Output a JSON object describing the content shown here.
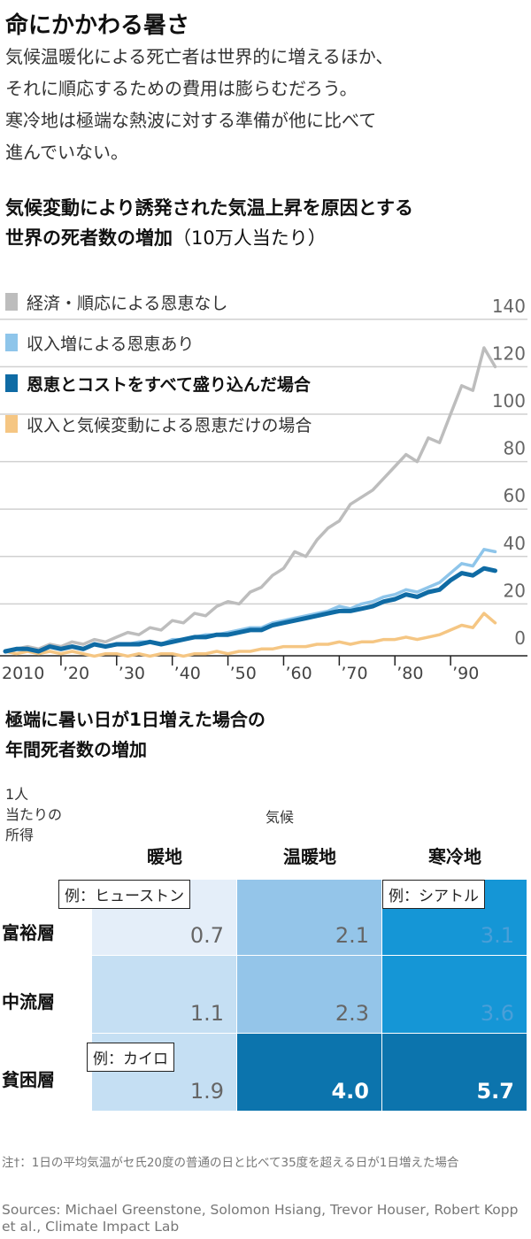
{
  "title": "命にかかわる暑さ",
  "subtitle": {
    "line1": "気候温暖化による死亡者は世界的に増えるほか、",
    "line2": "それに順応するための費用は膨らむだろう。",
    "line3": "寒冷地は極端な熱波に対する準備が他に比べて",
    "line4": "進んでいない。"
  },
  "chart_data": [
    {
      "type": "line",
      "title": "気候変動により誘発された気温上昇を原因とする世界の死者数の増加",
      "title_line1": "気候変動により誘発された気温上昇を原因とする",
      "title_line2": "世界の死者数の増加",
      "title_sub": "（10万人当たり）",
      "x_tick_labels": [
        "2010",
        "’20",
        "’30",
        "’40",
        "’50",
        "’60",
        "’70",
        "’80",
        "’90"
      ],
      "x_ticks": [
        2010,
        2020,
        2030,
        2040,
        2050,
        2060,
        2070,
        2080,
        2090
      ],
      "y_tick_labels": [
        "0",
        "20",
        "40",
        "60",
        "80",
        "100",
        "120",
        "140"
      ],
      "y_ticks": [
        0,
        20,
        40,
        60,
        80,
        100,
        120,
        140
      ],
      "xlim": [
        2010,
        2100
      ],
      "ylim": [
        -5,
        145
      ],
      "grid": true,
      "legend_position": "top-left",
      "x": [
        2010,
        2012,
        2014,
        2016,
        2018,
        2020,
        2022,
        2024,
        2026,
        2028,
        2030,
        2032,
        2034,
        2036,
        2038,
        2040,
        2042,
        2044,
        2046,
        2048,
        2050,
        2052,
        2054,
        2056,
        2058,
        2060,
        2062,
        2064,
        2066,
        2068,
        2070,
        2072,
        2074,
        2076,
        2078,
        2080,
        2082,
        2084,
        2086,
        2088,
        2090,
        2092,
        2094,
        2096,
        2098
      ],
      "series": [
        {
          "name": "経済・順応による恩恵なし",
          "color": "#bdbdbd",
          "values": [
            0,
            1,
            2,
            1,
            3,
            2,
            4,
            3,
            5,
            4,
            6,
            8,
            7,
            10,
            9,
            13,
            12,
            16,
            15,
            19,
            21,
            20,
            25,
            27,
            32,
            35,
            42,
            40,
            47,
            52,
            55,
            62,
            65,
            68,
            73,
            78,
            83,
            80,
            90,
            88,
            100,
            112,
            110,
            128,
            120
          ]
        },
        {
          "name": "収入増による恩恵あり",
          "color": "#8ec5ea",
          "values": [
            0,
            1,
            1,
            0,
            2,
            1,
            2,
            1,
            3,
            2,
            3,
            3,
            4,
            4,
            3,
            5,
            5,
            6,
            7,
            7,
            8,
            9,
            10,
            10,
            12,
            13,
            14,
            15,
            16,
            17,
            19,
            18,
            20,
            21,
            23,
            24,
            26,
            25,
            27,
            29,
            33,
            37,
            36,
            43,
            42
          ]
        },
        {
          "name": "恩恵とコストをすべて盛り込んだ場合",
          "color": "#0f6ba4",
          "bold": true,
          "values": [
            0,
            1,
            1,
            0,
            2,
            1,
            2,
            1,
            3,
            2,
            3,
            3,
            3,
            4,
            3,
            4,
            5,
            6,
            6,
            7,
            7,
            8,
            9,
            9,
            11,
            12,
            13,
            14,
            15,
            16,
            17,
            17,
            18,
            19,
            21,
            22,
            24,
            23,
            25,
            26,
            30,
            33,
            32,
            35,
            34
          ]
        },
        {
          "name": "収入と気候変動による恩恵だけの場合",
          "color": "#f5c683",
          "values": [
            0,
            -1,
            0,
            -1,
            0,
            -1,
            0,
            -1,
            -2,
            -1,
            -1,
            -2,
            -1,
            -2,
            -1,
            -1,
            -2,
            -1,
            -1,
            0,
            -1,
            0,
            0,
            1,
            1,
            2,
            2,
            2,
            3,
            3,
            4,
            3,
            4,
            4,
            5,
            5,
            6,
            5,
            6,
            7,
            9,
            11,
            10,
            16,
            12
          ]
        }
      ]
    },
    {
      "type": "heatmap",
      "title": "極端に暑い日が1日増えた場合の年間死者数の増加",
      "title_line1": "極端に暑い日が1日増えた場合の",
      "title_line2": "年間死者数の増加",
      "row_axis_label": [
        "1人",
        "当たりの",
        "所得"
      ],
      "col_axis_label": "気候",
      "columns": [
        "暖地",
        "温暖地",
        "寒冷地"
      ],
      "rows": [
        "富裕層",
        "中流層",
        "貧困層"
      ],
      "values": [
        [
          0.7,
          2.1,
          3.1
        ],
        [
          1.1,
          2.3,
          3.6
        ],
        [
          1.9,
          4.0,
          5.7
        ]
      ],
      "value_labels": [
        [
          "0.7",
          "2.1",
          "3.1"
        ],
        [
          "1.1",
          "2.3",
          "3.6"
        ],
        [
          "1.9",
          "4.0",
          "5.7"
        ]
      ],
      "cell_colors": [
        [
          "#e4eef9",
          "#94c5e9",
          "#1596d6"
        ],
        [
          "#c5dff3",
          "#94c5e9",
          "#1596d6"
        ],
        [
          "#c5dff3",
          "#0c74ad",
          "#0c74ad"
        ]
      ],
      "annotations": [
        {
          "text": "例：ヒューストン",
          "row": 0,
          "col": 0
        },
        {
          "text": "例：シアトル",
          "row": 0,
          "col": 2
        },
        {
          "text": "例：カイロ",
          "row": 2,
          "col": 0
        }
      ]
    }
  ],
  "note": "注†：1日の平均気温がセ氏20度の普通の日と比べて35度を超える日が1日増えた場合",
  "sources": "Sources: Michael Greenstone, Solomon Hsiang, Trevor Houser, Robert Kopp et al., Climate Impact Lab"
}
